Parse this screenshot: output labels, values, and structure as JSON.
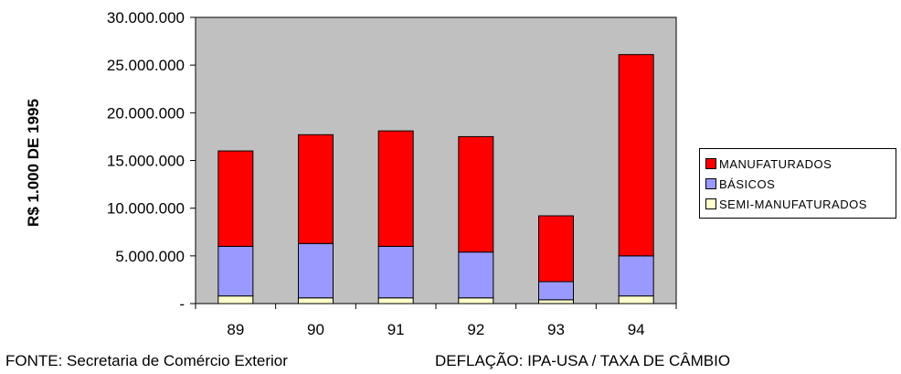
{
  "chart_data": {
    "type": "bar",
    "stacked": true,
    "categories": [
      "89",
      "90",
      "91",
      "92",
      "93",
      "94"
    ],
    "series": [
      {
        "name": "SEMI-MANUFATURADOS",
        "color": "#ffffcc",
        "values": [
          800000,
          600000,
          600000,
          600000,
          400000,
          800000
        ]
      },
      {
        "name": "BÁSICOS",
        "color": "#9999ff",
        "values": [
          5200000,
          5700000,
          5400000,
          4800000,
          1900000,
          4200000
        ]
      },
      {
        "name": "MANUFATURADOS",
        "color": "#ff0000",
        "values": [
          10000000,
          11400000,
          12100000,
          12100000,
          6900000,
          21100000
        ]
      }
    ],
    "ylabel": "R$ 1.000 DE 1995",
    "xlabel": "",
    "ylim": [
      0,
      30000000
    ],
    "yticks": [
      {
        "value": 0,
        "label": "-"
      },
      {
        "value": 5000000,
        "label": "5.000.000"
      },
      {
        "value": 10000000,
        "label": "10.000.000"
      },
      {
        "value": 15000000,
        "label": "15.000.000"
      },
      {
        "value": 20000000,
        "label": "20.000.000"
      },
      {
        "value": 25000000,
        "label": "25.000.000"
      },
      {
        "value": 30000000,
        "label": "30.000.000"
      }
    ],
    "grid": false,
    "plot_background": "#c0c0c0",
    "legend_position": "right"
  },
  "legend": {
    "items": [
      {
        "label": "MANUFATURADOS",
        "color": "#ff0000"
      },
      {
        "label": "BÁSICOS",
        "color": "#9999ff"
      },
      {
        "label": "SEMI-MANUFATURADOS",
        "color": "#ffffcc"
      }
    ]
  },
  "footer": {
    "source": "FONTE: Secretaria de Comércio Exterior",
    "deflation": "DEFLAÇÃO: IPA-USA / TAXA DE CÂMBIO"
  }
}
